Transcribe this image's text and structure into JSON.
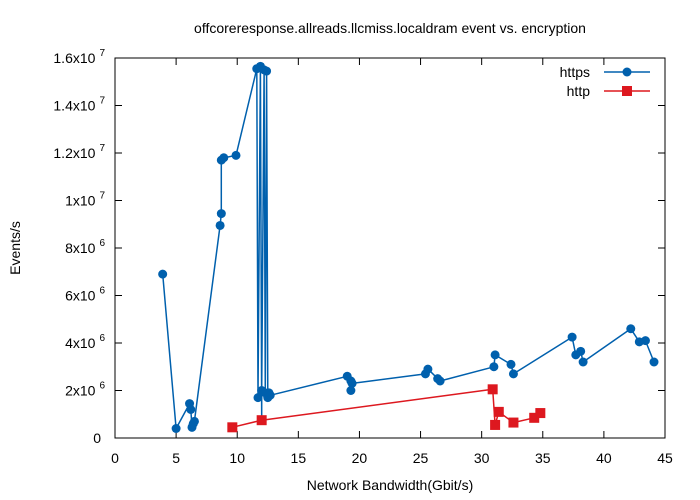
{
  "chart_data": {
    "type": "line",
    "title": "offcoreresponse.allreads.llcmiss.localdram event vs. encryption",
    "xlabel": "Network Bandwidth(Gbit/s)",
    "ylabel": "Events/s",
    "xlim": [
      0,
      45
    ],
    "ylim": [
      0,
      16000000
    ],
    "grid": false,
    "legend_position": "top-right",
    "x_ticks": [
      {
        "value": 0,
        "label": "0"
      },
      {
        "value": 5,
        "label": "5"
      },
      {
        "value": 10,
        "label": "10"
      },
      {
        "value": 15,
        "label": "15"
      },
      {
        "value": 20,
        "label": "20"
      },
      {
        "value": 25,
        "label": "25"
      },
      {
        "value": 30,
        "label": "30"
      },
      {
        "value": 35,
        "label": "35"
      },
      {
        "value": 40,
        "label": "40"
      },
      {
        "value": 45,
        "label": "45"
      }
    ],
    "y_ticks": [
      {
        "value": 0,
        "base": "0",
        "exp": ""
      },
      {
        "value": 2000000,
        "base": "2x10",
        "exp": "6"
      },
      {
        "value": 4000000,
        "base": "4x10",
        "exp": "6"
      },
      {
        "value": 6000000,
        "base": "6x10",
        "exp": "6"
      },
      {
        "value": 8000000,
        "base": "8x10",
        "exp": "6"
      },
      {
        "value": 10000000,
        "base": "1x10",
        "exp": "7"
      },
      {
        "value": 12000000,
        "base": "1.2x10",
        "exp": "7"
      },
      {
        "value": 14000000,
        "base": "1.4x10",
        "exp": "7"
      },
      {
        "value": 16000000,
        "base": "1.6x10",
        "exp": "7"
      }
    ],
    "series": [
      {
        "name": "https",
        "color": "#0060ad",
        "marker": "circle",
        "points": [
          [
            3.9,
            6900000
          ],
          [
            5.0,
            400000
          ],
          [
            6.1,
            1450000
          ],
          [
            6.2,
            1200000
          ],
          [
            6.3,
            450000
          ],
          [
            6.4,
            600000
          ],
          [
            6.5,
            700000
          ],
          [
            8.6,
            8950000
          ],
          [
            8.7,
            9450000
          ],
          [
            8.7,
            11700000
          ],
          [
            8.9,
            11800000
          ],
          [
            9.9,
            11900000
          ],
          [
            11.6,
            15550000
          ],
          [
            11.7,
            1700000
          ],
          [
            11.9,
            15650000
          ],
          [
            12.0,
            750000
          ],
          [
            12.0,
            2000000
          ],
          [
            12.2,
            15500000
          ],
          [
            12.3,
            1900000
          ],
          [
            12.4,
            15450000
          ],
          [
            12.5,
            1700000
          ],
          [
            12.6,
            1900000
          ],
          [
            12.7,
            1800000
          ],
          [
            19.0,
            2600000
          ],
          [
            19.3,
            2400000
          ],
          [
            19.3,
            2000000
          ],
          [
            19.4,
            2300000
          ],
          [
            25.4,
            2700000
          ],
          [
            25.6,
            2900000
          ],
          [
            26.4,
            2500000
          ],
          [
            26.6,
            2400000
          ],
          [
            31.0,
            3000000
          ],
          [
            31.1,
            3500000
          ],
          [
            32.4,
            3100000
          ],
          [
            32.6,
            2700000
          ],
          [
            37.4,
            4250000
          ],
          [
            37.7,
            3500000
          ],
          [
            38.1,
            3650000
          ],
          [
            38.3,
            3200000
          ],
          [
            42.2,
            4600000
          ],
          [
            42.9,
            4050000
          ],
          [
            43.4,
            4100000
          ],
          [
            44.1,
            3200000
          ]
        ]
      },
      {
        "name": "http",
        "color": "#dd181f",
        "marker": "square",
        "points": [
          [
            9.6,
            450000
          ],
          [
            12.0,
            750000
          ],
          [
            30.9,
            2050000
          ],
          [
            31.1,
            550000
          ],
          [
            31.4,
            1100000
          ],
          [
            32.6,
            650000
          ],
          [
            34.3,
            850000
          ],
          [
            34.8,
            1050000
          ]
        ]
      }
    ]
  }
}
